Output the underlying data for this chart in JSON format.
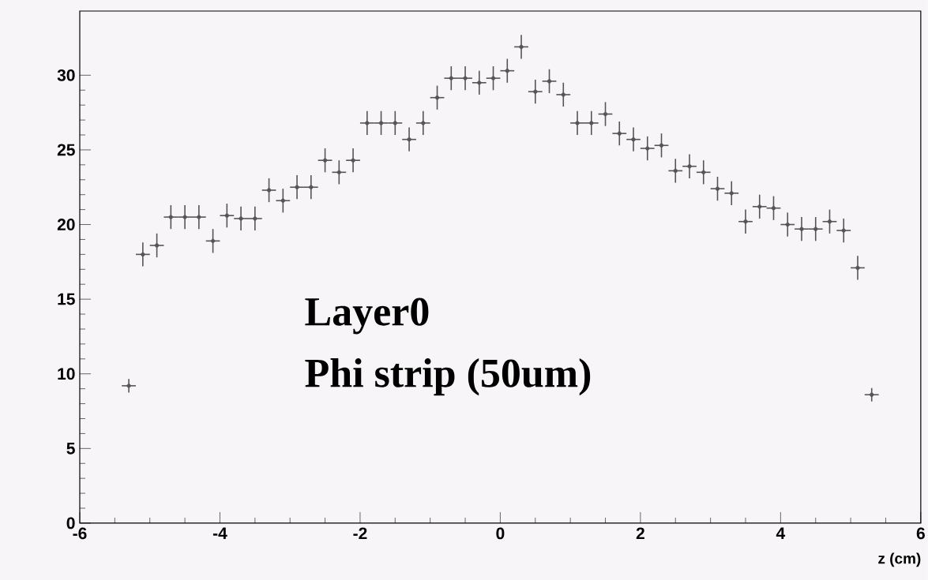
{
  "chart_data": {
    "type": "scatter",
    "x": [
      -5.3,
      -5.1,
      -4.9,
      -4.7,
      -4.5,
      -4.3,
      -4.1,
      -3.9,
      -3.7,
      -3.5,
      -3.3,
      -3.1,
      -2.9,
      -2.7,
      -2.5,
      -2.3,
      -2.1,
      -1.9,
      -1.7,
      -1.5,
      -1.3,
      -1.1,
      -0.9,
      -0.7,
      -0.5,
      -0.3,
      -0.1,
      0.1,
      0.3,
      0.5,
      0.7,
      0.9,
      1.1,
      1.3,
      1.5,
      1.7,
      1.9,
      2.1,
      2.3,
      2.5,
      2.7,
      2.9,
      3.1,
      3.3,
      3.5,
      3.7,
      3.9,
      4.1,
      4.3,
      4.5,
      4.7,
      4.9,
      5.1,
      5.3
    ],
    "values": [
      9.2,
      18.0,
      18.6,
      20.5,
      20.5,
      20.5,
      18.9,
      20.6,
      20.4,
      20.4,
      22.3,
      21.6,
      22.5,
      22.5,
      24.3,
      23.5,
      24.3,
      26.8,
      26.8,
      26.8,
      25.7,
      26.8,
      28.5,
      29.8,
      29.8,
      29.5,
      29.8,
      30.3,
      31.9,
      28.9,
      29.6,
      28.7,
      26.8,
      26.8,
      27.4,
      26.1,
      25.7,
      25.1,
      25.3,
      23.6,
      23.9,
      23.5,
      22.4,
      22.1,
      20.2,
      21.2,
      21.1,
      20.0,
      19.7,
      19.7,
      20.2,
      19.6,
      17.1,
      8.6
    ],
    "errors": [
      0.45,
      0.8,
      0.8,
      0.8,
      0.8,
      0.8,
      0.8,
      0.8,
      0.8,
      0.8,
      0.8,
      0.8,
      0.8,
      0.8,
      0.8,
      0.8,
      0.8,
      0.8,
      0.8,
      0.8,
      0.8,
      0.8,
      0.8,
      0.8,
      0.8,
      0.8,
      0.8,
      0.8,
      0.8,
      0.8,
      0.8,
      0.8,
      0.8,
      0.8,
      0.8,
      0.8,
      0.8,
      0.8,
      0.8,
      0.8,
      0.8,
      0.8,
      0.8,
      0.8,
      0.8,
      0.8,
      0.8,
      0.8,
      0.8,
      0.8,
      0.8,
      0.8,
      0.8,
      0.45
    ],
    "xerrors": [
      0.1,
      0.1,
      0.1,
      0.1,
      0.1,
      0.1,
      0.1,
      0.1,
      0.1,
      0.1,
      0.1,
      0.1,
      0.1,
      0.1,
      0.1,
      0.1,
      0.1,
      0.1,
      0.1,
      0.1,
      0.1,
      0.1,
      0.1,
      0.1,
      0.1,
      0.1,
      0.1,
      0.1,
      0.1,
      0.1,
      0.1,
      0.1,
      0.1,
      0.1,
      0.1,
      0.1,
      0.1,
      0.1,
      0.1,
      0.1,
      0.1,
      0.1,
      0.1,
      0.1,
      0.1,
      0.1,
      0.1,
      0.1,
      0.1,
      0.1,
      0.1,
      0.1,
      0.1,
      0.1
    ],
    "color": "#555555",
    "marker": "none",
    "grid": false,
    "xlabel": "z (cm)",
    "xlim": [
      -6,
      6
    ],
    "ylim": [
      0,
      34.3
    ],
    "xticks": [
      -6,
      -4,
      -2,
      0,
      2,
      4,
      6
    ],
    "yticks": [
      0,
      5,
      10,
      15,
      20,
      25,
      30
    ],
    "annotations": [
      "Layer0",
      "Phi strip (50um)"
    ]
  }
}
